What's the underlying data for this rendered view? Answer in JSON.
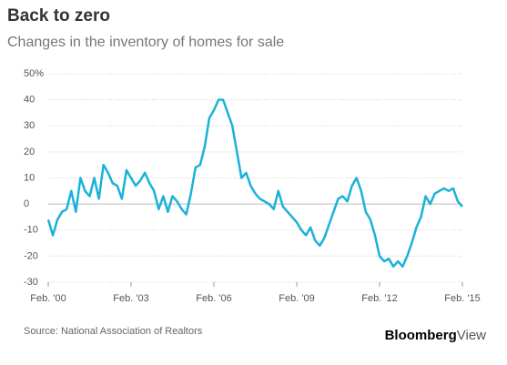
{
  "chart_data": {
    "type": "line",
    "title": "Back to zero",
    "subtitle": "Changes in the inventory of homes for sale",
    "source": "Source: National Association of Realtors",
    "logo": {
      "brand": "Bloomberg",
      "suffix": "View"
    },
    "x": [
      "2000-02",
      "2000-04",
      "2000-06",
      "2000-08",
      "2000-10",
      "2000-12",
      "2001-02",
      "2001-04",
      "2001-06",
      "2001-08",
      "2001-10",
      "2001-12",
      "2002-02",
      "2002-04",
      "2002-06",
      "2002-08",
      "2002-10",
      "2002-12",
      "2003-02",
      "2003-04",
      "2003-06",
      "2003-08",
      "2003-10",
      "2003-12",
      "2004-02",
      "2004-04",
      "2004-06",
      "2004-08",
      "2004-10",
      "2004-12",
      "2005-02",
      "2005-04",
      "2005-06",
      "2005-08",
      "2005-10",
      "2005-12",
      "2006-02",
      "2006-04",
      "2006-06",
      "2006-08",
      "2006-10",
      "2006-12",
      "2007-02",
      "2007-04",
      "2007-06",
      "2007-08",
      "2007-10",
      "2007-12",
      "2008-02",
      "2008-04",
      "2008-06",
      "2008-08",
      "2008-10",
      "2008-12",
      "2009-02",
      "2009-04",
      "2009-06",
      "2009-08",
      "2009-10",
      "2009-12",
      "2010-02",
      "2010-04",
      "2010-06",
      "2010-08",
      "2010-10",
      "2010-12",
      "2011-02",
      "2011-04",
      "2011-06",
      "2011-08",
      "2011-10",
      "2011-12",
      "2012-02",
      "2012-04",
      "2012-06",
      "2012-08",
      "2012-10",
      "2012-12",
      "2013-02",
      "2013-04",
      "2013-06",
      "2013-08",
      "2013-10",
      "2013-12",
      "2014-02",
      "2014-04",
      "2014-06",
      "2014-08",
      "2014-10",
      "2014-12",
      "2015-02"
    ],
    "series": [
      {
        "name": "Inventory change",
        "color": "#1ab2d9",
        "values": [
          -6,
          -12,
          -6,
          -3,
          -2,
          5,
          -3,
          10,
          5,
          3,
          10,
          2,
          15,
          12,
          8,
          7,
          2,
          13,
          10,
          7,
          9,
          12,
          8,
          5,
          -2,
          3,
          -3,
          3,
          1,
          -2,
          -4,
          4,
          14,
          15,
          22,
          33,
          36,
          40,
          40,
          35,
          30,
          20,
          10,
          12,
          7,
          4,
          2,
          1,
          0,
          -2,
          5,
          -1,
          -3,
          -5,
          -7,
          -10,
          -12,
          -9,
          -14,
          -16,
          -13,
          -8,
          -3,
          2,
          3,
          1,
          7,
          10,
          5,
          -3,
          -6,
          -12,
          -20,
          -22,
          -21,
          -24,
          -22,
          -24,
          -20,
          -15,
          -9,
          -5,
          3,
          0,
          4,
          5,
          6,
          5,
          6,
          1,
          -1
        ]
      }
    ],
    "xlim": [
      "2000-02",
      "2015-02"
    ],
    "xticks": [
      {
        "value": "2000-02",
        "label": "Feb. '00"
      },
      {
        "value": "2003-02",
        "label": "Feb. '03"
      },
      {
        "value": "2006-02",
        "label": "Feb. '06"
      },
      {
        "value": "2009-02",
        "label": "Feb. '09"
      },
      {
        "value": "2012-02",
        "label": "Feb. '12"
      },
      {
        "value": "2015-02",
        "label": "Feb. '15"
      }
    ],
    "ylim": [
      -30,
      50
    ],
    "yticks": [
      {
        "value": 50,
        "label": "50%"
      },
      40,
      30,
      20,
      10,
      0,
      -10,
      -20,
      -30
    ],
    "grid": true
  }
}
